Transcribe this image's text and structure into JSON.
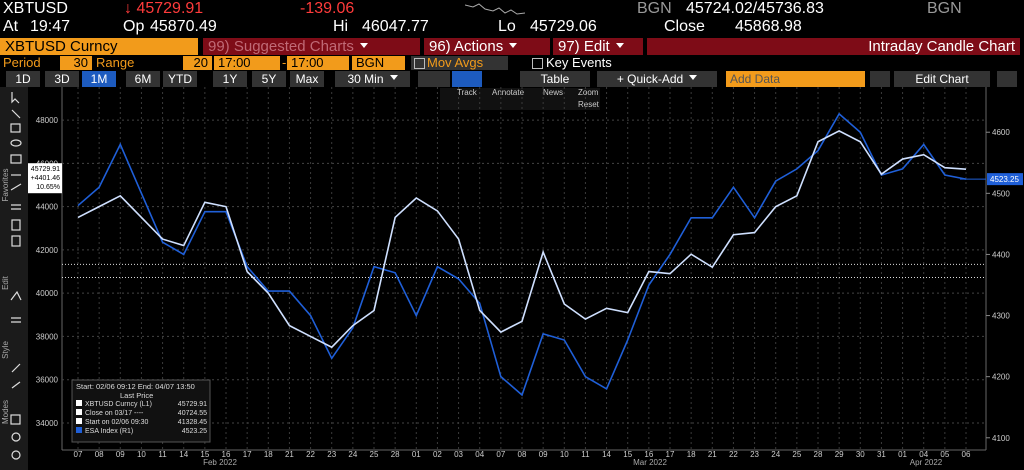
{
  "header": {
    "ticker": "XBTUSD",
    "last": "↓ 45729.91",
    "change": "-139.06",
    "source": "BGN",
    "bid_ask": "45724.02/45736.83",
    "source2": "BGN",
    "time_label": "At",
    "time": "19:47",
    "open_label": "Op",
    "open": "45870.49",
    "high_label": "Hi",
    "high": "46047.77",
    "low_label": "Lo",
    "low": "45729.06",
    "close_label": "Close",
    "close": "45868.98"
  },
  "menu": {
    "security": "XBTUSD Curncy",
    "suggested": "99) Suggested Charts",
    "actions": "96) Actions",
    "edit": "97) Edit",
    "chart_type": "Intraday Candle Chart"
  },
  "settings": {
    "period_label": "Period",
    "period": "30",
    "range_label": "Range",
    "range": "20",
    "start": "17:00",
    "dash": "-",
    "end": "17:00",
    "tz": "BGN",
    "mov_avgs": "Mov Avgs",
    "key_events": "Key Events"
  },
  "tabs": [
    "1D",
    "3D",
    "1M",
    "6M",
    "YTD",
    "1Y",
    "5Y",
    "Max"
  ],
  "interval": "30 Min",
  "table": "Table",
  "quick_add": "+ Quick-Add",
  "add_data": "Add Data",
  "edit_chart": "Edit Chart",
  "chart_tools": [
    "Track",
    "Annotate",
    "News",
    "Zoom",
    "Reset"
  ],
  "side_labels": [
    "Favorites",
    "Edit",
    "Style",
    "Modes"
  ],
  "chart_data": {
    "type": "line",
    "categories": [
      "07",
      "08",
      "09",
      "10",
      "11",
      "14",
      "15",
      "16",
      "17",
      "18",
      "21",
      "22",
      "23",
      "24",
      "25",
      "28",
      "01",
      "02",
      "03",
      "04",
      "07",
      "08",
      "09",
      "10",
      "11",
      "14",
      "15",
      "16",
      "17",
      "18",
      "21",
      "22",
      "23",
      "24",
      "25",
      "28",
      "29",
      "30",
      "31",
      "01",
      "04",
      "05",
      "06"
    ],
    "x_groups": [
      "Feb 2022",
      "Mar 2022",
      "Apr 2022"
    ],
    "series": [
      {
        "name": "XBTUSD Curncy (L1)",
        "color": "#cfe0ff",
        "last": 45729.91,
        "values": [
          43500,
          44000,
          44500,
          43500,
          42500,
          42200,
          44200,
          44000,
          41000,
          40000,
          38500,
          38000,
          37500,
          38500,
          39200,
          43500,
          44400,
          43800,
          42500,
          39200,
          38200,
          38700,
          41900,
          39500,
          38800,
          39300,
          39100,
          41000,
          40900,
          41800,
          41200,
          42700,
          42800,
          44000,
          44500,
          47000,
          47500,
          47000,
          45500,
          46200,
          46400,
          45800,
          45729.91
        ]
      },
      {
        "name": "ESA Index (R1)",
        "color": "#1f5fd8",
        "axis": "y2",
        "last": 4523.25,
        "values": [
          4480,
          4510,
          4580,
          4500,
          4420,
          4400,
          4470,
          4470,
          4380,
          4340,
          4340,
          4300,
          4230,
          4280,
          4380,
          4370,
          4300,
          4380,
          4360,
          4320,
          4200,
          4170,
          4270,
          4260,
          4200,
          4180,
          4260,
          4350,
          4400,
          4460,
          4460,
          4510,
          4460,
          4520,
          4540,
          4570,
          4630,
          4600,
          4530,
          4540,
          4580,
          4530,
          4523.25
        ]
      }
    ],
    "reference_lines": [
      {
        "name": "Close on 03/17 ----",
        "value": 40724.55
      },
      {
        "name": "Start on 02/06 09:30",
        "value": 41328.45
      }
    ],
    "legend_range": "Start: 02/06 09:12 End: 04/07 13:50",
    "legend_heading": "Last Price",
    "change_abs": {
      "value": 4401.46,
      "label": "+4401.46"
    },
    "change_pct": {
      "value": 10.65,
      "label": "10.65%"
    },
    "ylim": [
      32750,
      49530
    ],
    "yticks": [
      {
        "value": 34000,
        "label": "34000"
      },
      36000,
      38000,
      40000,
      42000,
      44000,
      46000,
      48000
    ],
    "y2lim": [
      4080,
      4674
    ],
    "y2ticks": [
      4100,
      4200,
      4300,
      4400,
      4500,
      4600
    ],
    "grid": true
  }
}
